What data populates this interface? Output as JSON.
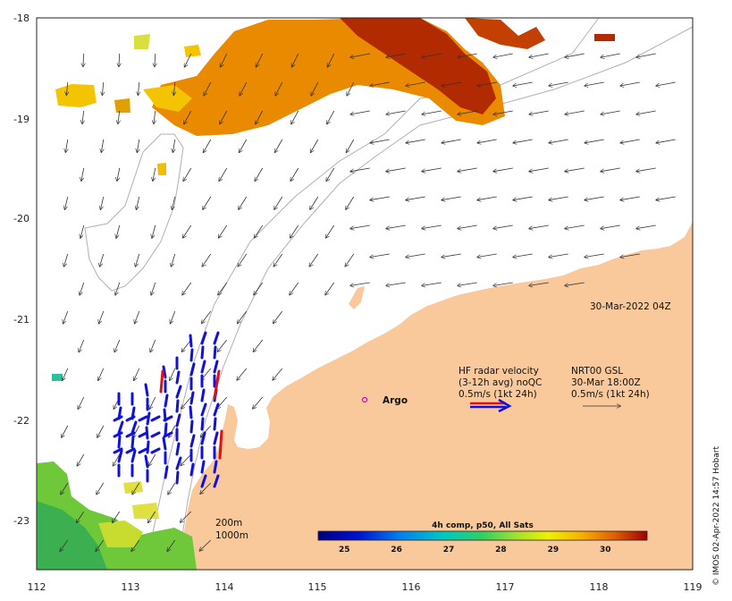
{
  "map": {
    "x_ticks": [
      "112",
      "113",
      "114",
      "115",
      "116",
      "117",
      "118",
      "119"
    ],
    "y_ticks": [
      "-18",
      "-19",
      "-20",
      "-21",
      "-22",
      "-23"
    ],
    "timestamp": "30-Mar-2022 04Z",
    "argo_label": "Argo",
    "depth_labels": [
      "200m",
      "1000m"
    ],
    "hf_radar": {
      "line1": "HF radar velocity",
      "line2": "(3-12h avg) noQC",
      "line3": "0.5m/s (1kt 24h)"
    },
    "nrt": {
      "line1": "NRT00 GSL",
      "line2": "30-Mar 18:00Z",
      "line3": "0.5m/s (1kt 24h)"
    },
    "colorbar": {
      "title": "4h comp, p50, All Sats",
      "ticks": [
        "25",
        "26",
        "27",
        "28",
        "29",
        "30"
      ],
      "range": [
        24.5,
        30.8
      ]
    },
    "credit": "© IMOS 02-Apr-2022 14:57 Hobart",
    "colors": {
      "land": "#f9c89b",
      "sst_hot": "#b22a00",
      "sst_warm": "#e98a00",
      "sst_mid": "#f5c400",
      "sst_cool": "#6ec83a",
      "radar_blue": "#1010e0",
      "radar_red": "#e01010"
    }
  }
}
